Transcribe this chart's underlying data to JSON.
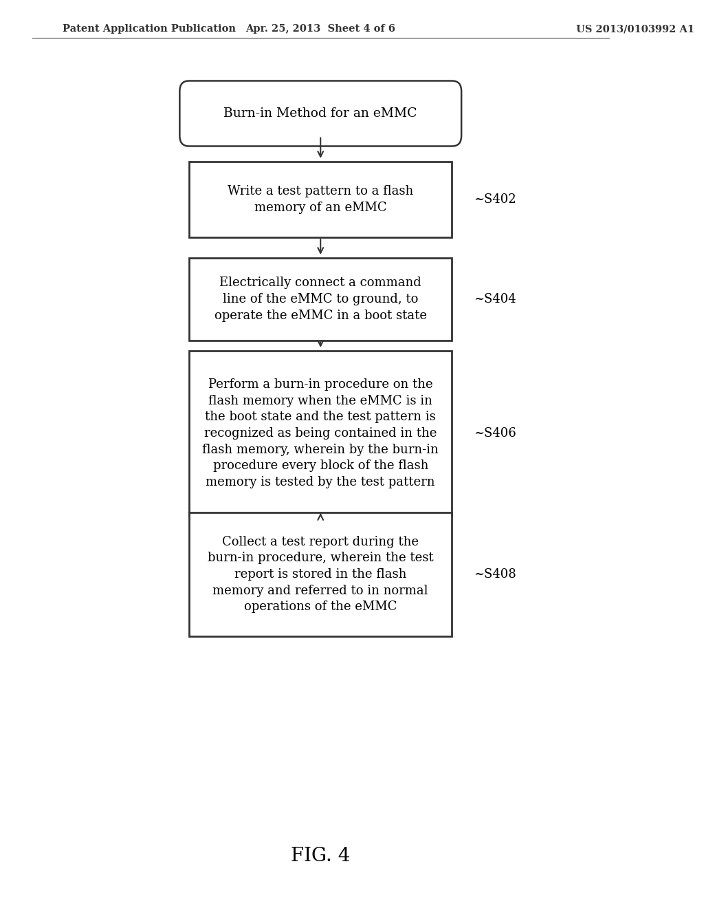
{
  "background_color": "#ffffff",
  "header_left": "Patent Application Publication",
  "header_center": "Apr. 25, 2013  Sheet 4 of 6",
  "header_right": "US 2013/0103992 A1",
  "header_fontsize": 10.5,
  "title_box": "Burn-in Method for an eMMC",
  "boxes": [
    {
      "label": "Write a test pattern to a flash\nmemory of an eMMC",
      "step": "S402",
      "shape": "rect"
    },
    {
      "label": "Electrically connect a command\nline of the eMMC to ground, to\noperate the eMMC in a boot state",
      "step": "S404",
      "shape": "rect"
    },
    {
      "label": "Perform a burn-in procedure on the\nflash memory when the eMMC is in\nthe boot state and the test pattern is\nrecognized as being contained in the\nflash memory, wherein by the burn-in\nprocedure every block of the flash\nmemory is tested by the test pattern",
      "step": "S406",
      "shape": "rect"
    },
    {
      "label": "Collect a test report during the\nburn-in procedure, wherein the test\nreport is stored in the flash\nmemory and referred to in normal\noperations of the eMMC",
      "step": "S408",
      "shape": "rect"
    }
  ],
  "fig_label": "FIG. 4",
  "fig_label_fontsize": 20,
  "text_fontsize": 13,
  "step_fontsize": 13
}
